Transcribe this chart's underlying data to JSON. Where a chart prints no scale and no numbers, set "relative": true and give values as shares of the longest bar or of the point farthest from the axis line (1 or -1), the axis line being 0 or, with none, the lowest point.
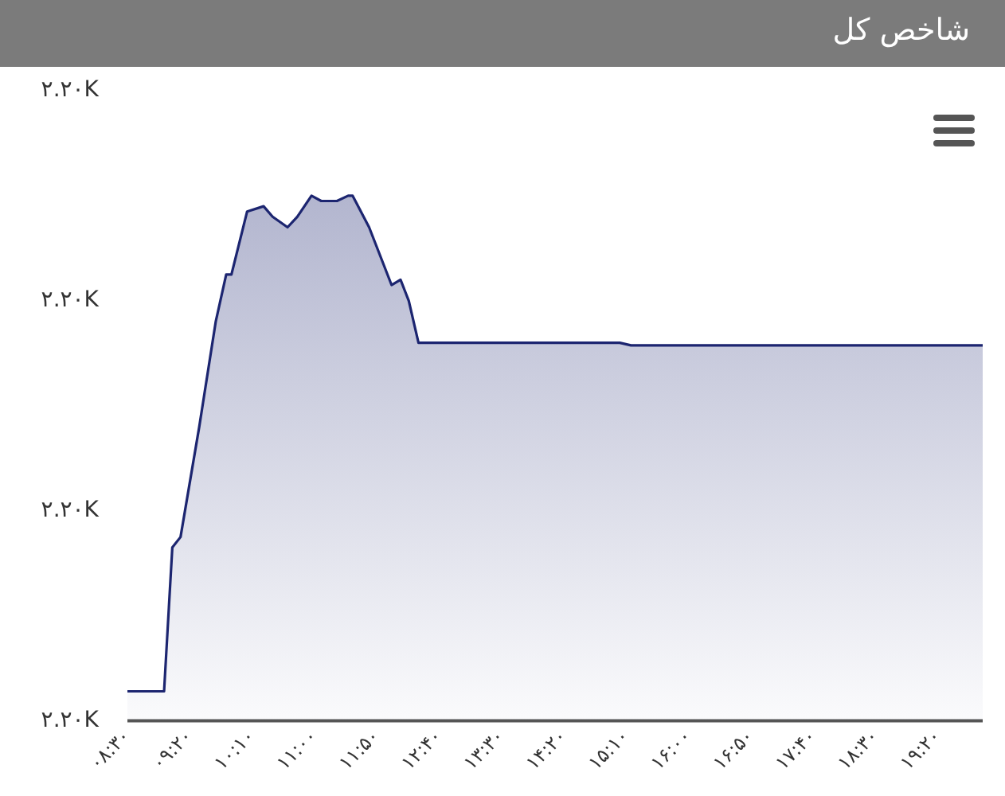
{
  "chart_data": {
    "type": "area",
    "title": "شاخص کل",
    "relative": true,
    "x": [
      8.5,
      8.99,
      9.1,
      9.21,
      9.46,
      9.68,
      9.82,
      9.89,
      10.1,
      10.32,
      10.44,
      10.64,
      10.77,
      10.96,
      11.09,
      11.3,
      11.45,
      11.51,
      11.73,
      12.03,
      12.15,
      12.26,
      12.39,
      15.08,
      15.23,
      19.93
    ],
    "series": [
      {
        "color": "#1c2570",
        "values": [
          0.056,
          0.056,
          0.33,
          0.35,
          0.56,
          0.76,
          0.85,
          0.85,
          0.97,
          0.98,
          0.96,
          0.94,
          0.96,
          1,
          0.99,
          0.99,
          1,
          1,
          0.94,
          0.83,
          0.84,
          0.8,
          0.72,
          0.72,
          0.715,
          0.715
        ]
      }
    ],
    "xlim": [
      8.5,
      19.93
    ],
    "xticks": [
      {
        "value": 8.5,
        "label": "۰۸:۳۰"
      },
      {
        "value": 9.333,
        "label": "۰۹:۲۰"
      },
      {
        "value": 10.167,
        "label": "۱۰:۱۰"
      },
      {
        "value": 11,
        "label": "۱۱:۰۰"
      },
      {
        "value": 11.833,
        "label": "۱۱:۵۰"
      },
      {
        "value": 12.667,
        "label": "۱۲:۴۰"
      },
      {
        "value": 13.5,
        "label": "۱۳:۳۰"
      },
      {
        "value": 14.333,
        "label": "۱۴:۲۰"
      },
      {
        "value": 15.167,
        "label": "۱۵:۱۰"
      },
      {
        "value": 16,
        "label": "۱۶:۰۰"
      },
      {
        "value": 16.833,
        "label": "۱۶:۵۰"
      },
      {
        "value": 17.667,
        "label": "۱۷:۴۰"
      },
      {
        "value": 18.5,
        "label": "۱۸:۳۰"
      },
      {
        "value": 19.333,
        "label": "۱۹:۲۰"
      }
    ],
    "annotations": [
      "۲.۲۰K",
      "۲.۲۰K",
      "۲.۲۰K",
      "۲.۲۰K"
    ],
    "legend": false,
    "marker": "none",
    "line_style": "solid"
  }
}
